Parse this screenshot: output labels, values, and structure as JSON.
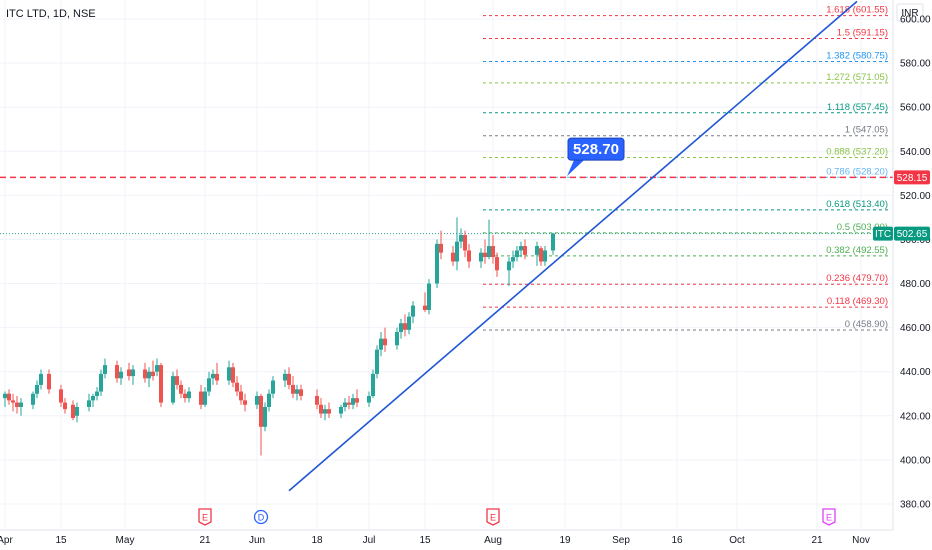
{
  "header": {
    "symbol": "ITC LTD, 1D, NSE",
    "currency": "INR"
  },
  "colors": {
    "up": "#26a69a",
    "down": "#ef5350",
    "trend": "#1f56d6",
    "callout": "#2962ff",
    "price_tag": "#089981",
    "hline": "#f23645",
    "dotted": "#26a69a"
  },
  "callout": {
    "label": "528.70"
  },
  "price_tags": {
    "hline": "528.15",
    "last": "502.65",
    "last_symbol": "ITC"
  },
  "events": [
    {
      "label": "E",
      "date": "2024-05-21",
      "color": "#f23645"
    },
    {
      "label": "D",
      "date": "2024-06-04",
      "color": "#2962ff"
    },
    {
      "label": "E",
      "date": "2024-08-01",
      "color": "#f23645"
    },
    {
      "label": "E",
      "date": "2024-10-24",
      "color": "#e040fb"
    }
  ],
  "chart_data": {
    "type": "candlestick",
    "title": "ITC LTD, 1D, NSE",
    "ylim": [
      370,
      605
    ],
    "y_ticks": [
      "380.00",
      "400.00",
      "420.00",
      "440.00",
      "460.00",
      "480.00",
      "500.00",
      "520.00",
      "540.00",
      "560.00",
      "580.00",
      "600.00"
    ],
    "x_ticks": [
      "Apr",
      "15",
      "May",
      "21",
      "Jun",
      "18",
      "Jul",
      "15",
      "Aug",
      "19",
      "Sep",
      "16",
      "Oct",
      "21",
      "Nov"
    ],
    "x_tick_dates": [
      "2024-04-01",
      "2024-04-15",
      "2024-05-01",
      "2024-05-21",
      "2024-06-03",
      "2024-06-18",
      "2024-07-01",
      "2024-07-15",
      "2024-08-01",
      "2024-08-19",
      "2024-09-02",
      "2024-09-16",
      "2024-10-01",
      "2024-10-21",
      "2024-11-01"
    ],
    "candles": [
      {
        "d": "2024-04-01",
        "o": 428,
        "h": 431,
        "l": 424,
        "c": 430
      },
      {
        "d": "2024-04-02",
        "o": 430,
        "h": 432,
        "l": 425,
        "c": 427
      },
      {
        "d": "2024-04-03",
        "o": 427,
        "h": 430,
        "l": 422,
        "c": 426
      },
      {
        "d": "2024-04-04",
        "o": 426,
        "h": 429,
        "l": 421,
        "c": 424
      },
      {
        "d": "2024-04-05",
        "o": 424,
        "h": 428,
        "l": 420,
        "c": 426
      },
      {
        "d": "2024-04-08",
        "o": 425,
        "h": 431,
        "l": 423,
        "c": 430
      },
      {
        "d": "2024-04-09",
        "o": 430,
        "h": 436,
        "l": 428,
        "c": 434
      },
      {
        "d": "2024-04-10",
        "o": 434,
        "h": 441,
        "l": 432,
        "c": 439
      },
      {
        "d": "2024-04-12",
        "o": 439,
        "h": 441,
        "l": 430,
        "c": 432
      },
      {
        "d": "2024-04-15",
        "o": 432,
        "h": 434,
        "l": 424,
        "c": 426
      },
      {
        "d": "2024-04-16",
        "o": 426,
        "h": 428,
        "l": 421,
        "c": 423
      },
      {
        "d": "2024-04-18",
        "o": 425,
        "h": 427,
        "l": 418,
        "c": 419
      },
      {
        "d": "2024-04-19",
        "o": 420,
        "h": 426,
        "l": 417,
        "c": 424
      },
      {
        "d": "2024-04-22",
        "o": 424,
        "h": 430,
        "l": 422,
        "c": 427
      },
      {
        "d": "2024-04-23",
        "o": 427,
        "h": 430,
        "l": 424,
        "c": 429
      },
      {
        "d": "2024-04-24",
        "o": 429,
        "h": 433,
        "l": 427,
        "c": 431
      },
      {
        "d": "2024-04-25",
        "o": 431,
        "h": 441,
        "l": 429,
        "c": 439
      },
      {
        "d": "2024-04-26",
        "o": 439,
        "h": 446,
        "l": 437,
        "c": 443
      },
      {
        "d": "2024-04-29",
        "o": 443,
        "h": 445,
        "l": 435,
        "c": 437
      },
      {
        "d": "2024-04-30",
        "o": 437,
        "h": 442,
        "l": 434,
        "c": 440
      },
      {
        "d": "2024-05-02",
        "o": 441,
        "h": 444,
        "l": 436,
        "c": 438
      },
      {
        "d": "2024-05-03",
        "o": 438,
        "h": 443,
        "l": 434,
        "c": 441
      },
      {
        "d": "2024-05-06",
        "o": 441,
        "h": 444,
        "l": 435,
        "c": 437
      },
      {
        "d": "2024-05-07",
        "o": 437,
        "h": 442,
        "l": 433,
        "c": 440
      },
      {
        "d": "2024-05-08",
        "o": 440,
        "h": 445,
        "l": 436,
        "c": 438
      },
      {
        "d": "2024-05-09",
        "o": 440,
        "h": 446,
        "l": 438,
        "c": 443
      },
      {
        "d": "2024-05-10",
        "o": 443,
        "h": 444,
        "l": 424,
        "c": 426
      },
      {
        "d": "2024-05-13",
        "o": 426,
        "h": 440,
        "l": 425,
        "c": 438
      },
      {
        "d": "2024-05-14",
        "o": 438,
        "h": 441,
        "l": 432,
        "c": 434
      },
      {
        "d": "2024-05-15",
        "o": 434,
        "h": 436,
        "l": 428,
        "c": 430
      },
      {
        "d": "2024-05-16",
        "o": 430,
        "h": 432,
        "l": 426,
        "c": 428
      },
      {
        "d": "2024-05-17",
        "o": 428,
        "h": 433,
        "l": 426,
        "c": 431
      },
      {
        "d": "2024-05-20",
        "o": 431,
        "h": 434,
        "l": 423,
        "c": 425
      },
      {
        "d": "2024-05-21",
        "o": 425,
        "h": 433,
        "l": 424,
        "c": 431
      },
      {
        "d": "2024-05-22",
        "o": 431,
        "h": 440,
        "l": 429,
        "c": 437
      },
      {
        "d": "2024-05-23",
        "o": 437,
        "h": 441,
        "l": 434,
        "c": 439
      },
      {
        "d": "2024-05-24",
        "o": 439,
        "h": 444,
        "l": 434,
        "c": 436
      },
      {
        "d": "2024-05-27",
        "o": 436,
        "h": 445,
        "l": 434,
        "c": 442
      },
      {
        "d": "2024-05-28",
        "o": 442,
        "h": 444,
        "l": 433,
        "c": 435
      },
      {
        "d": "2024-05-29",
        "o": 435,
        "h": 438,
        "l": 429,
        "c": 431
      },
      {
        "d": "2024-05-30",
        "o": 431,
        "h": 434,
        "l": 425,
        "c": 427
      },
      {
        "d": "2024-05-31",
        "o": 427,
        "h": 430,
        "l": 422,
        "c": 425
      },
      {
        "d": "2024-06-03",
        "o": 425,
        "h": 431,
        "l": 423,
        "c": 429
      },
      {
        "d": "2024-06-04",
        "o": 429,
        "h": 430,
        "l": 402,
        "c": 415
      },
      {
        "d": "2024-06-05",
        "o": 415,
        "h": 426,
        "l": 413,
        "c": 424
      },
      {
        "d": "2024-06-06",
        "o": 424,
        "h": 432,
        "l": 422,
        "c": 430
      },
      {
        "d": "2024-06-07",
        "o": 430,
        "h": 438,
        "l": 428,
        "c": 436
      },
      {
        "d": "2024-06-10",
        "o": 436,
        "h": 441,
        "l": 433,
        "c": 439
      },
      {
        "d": "2024-06-11",
        "o": 439,
        "h": 442,
        "l": 432,
        "c": 434
      },
      {
        "d": "2024-06-12",
        "o": 434,
        "h": 438,
        "l": 428,
        "c": 430
      },
      {
        "d": "2024-06-13",
        "o": 430,
        "h": 434,
        "l": 427,
        "c": 432
      },
      {
        "d": "2024-06-14",
        "o": 432,
        "h": 434,
        "l": 427,
        "c": 429
      },
      {
        "d": "2024-06-18",
        "o": 429,
        "h": 432,
        "l": 423,
        "c": 425
      },
      {
        "d": "2024-06-19",
        "o": 425,
        "h": 428,
        "l": 419,
        "c": 421
      },
      {
        "d": "2024-06-20",
        "o": 421,
        "h": 425,
        "l": 418,
        "c": 423
      },
      {
        "d": "2024-06-21",
        "o": 423,
        "h": 426,
        "l": 419,
        "c": 421
      },
      {
        "d": "2024-06-24",
        "o": 421,
        "h": 425,
        "l": 419,
        "c": 424
      },
      {
        "d": "2024-06-25",
        "o": 424,
        "h": 428,
        "l": 422,
        "c": 426
      },
      {
        "d": "2024-06-26",
        "o": 426,
        "h": 429,
        "l": 423,
        "c": 425
      },
      {
        "d": "2024-06-27",
        "o": 425,
        "h": 430,
        "l": 423,
        "c": 428
      },
      {
        "d": "2024-06-28",
        "o": 428,
        "h": 432,
        "l": 424,
        "c": 426
      },
      {
        "d": "2024-07-01",
        "o": 426,
        "h": 431,
        "l": 424,
        "c": 429
      },
      {
        "d": "2024-07-02",
        "o": 429,
        "h": 441,
        "l": 428,
        "c": 439
      },
      {
        "d": "2024-07-03",
        "o": 439,
        "h": 452,
        "l": 437,
        "c": 450
      },
      {
        "d": "2024-07-04",
        "o": 450,
        "h": 458,
        "l": 447,
        "c": 455
      },
      {
        "d": "2024-07-05",
        "o": 455,
        "h": 460,
        "l": 449,
        "c": 452
      },
      {
        "d": "2024-07-08",
        "o": 452,
        "h": 460,
        "l": 450,
        "c": 458
      },
      {
        "d": "2024-07-09",
        "o": 458,
        "h": 464,
        "l": 455,
        "c": 462
      },
      {
        "d": "2024-07-10",
        "o": 462,
        "h": 466,
        "l": 456,
        "c": 459
      },
      {
        "d": "2024-07-11",
        "o": 459,
        "h": 467,
        "l": 457,
        "c": 465
      },
      {
        "d": "2024-07-12",
        "o": 465,
        "h": 472,
        "l": 462,
        "c": 470
      },
      {
        "d": "2024-07-15",
        "o": 470,
        "h": 476,
        "l": 467,
        "c": 468
      },
      {
        "d": "2024-07-16",
        "o": 468,
        "h": 482,
        "l": 466,
        "c": 480
      },
      {
        "d": "2024-07-18",
        "o": 480,
        "h": 500,
        "l": 478,
        "c": 498
      },
      {
        "d": "2024-07-19",
        "o": 498,
        "h": 504,
        "l": 491,
        "c": 494
      },
      {
        "d": "2024-07-22",
        "o": 494,
        "h": 497,
        "l": 488,
        "c": 490
      },
      {
        "d": "2024-07-23",
        "o": 490,
        "h": 510,
        "l": 486,
        "c": 499
      },
      {
        "d": "2024-07-24",
        "o": 499,
        "h": 505,
        "l": 496,
        "c": 502
      },
      {
        "d": "2024-07-25",
        "o": 502,
        "h": 504,
        "l": 492,
        "c": 495
      },
      {
        "d": "2024-07-26",
        "o": 495,
        "h": 498,
        "l": 487,
        "c": 490
      },
      {
        "d": "2024-07-29",
        "o": 490,
        "h": 496,
        "l": 487,
        "c": 494
      },
      {
        "d": "2024-07-30",
        "o": 494,
        "h": 500,
        "l": 489,
        "c": 492
      },
      {
        "d": "2024-07-31",
        "o": 492,
        "h": 509,
        "l": 491,
        "c": 497
      },
      {
        "d": "2024-08-01",
        "o": 497,
        "h": 502,
        "l": 489,
        "c": 492
      },
      {
        "d": "2024-08-02",
        "o": 492,
        "h": 494,
        "l": 483,
        "c": 486
      },
      {
        "d": "2024-08-05",
        "o": 486,
        "h": 492,
        "l": 479,
        "c": 490
      },
      {
        "d": "2024-08-06",
        "o": 490,
        "h": 495,
        "l": 487,
        "c": 492
      },
      {
        "d": "2024-08-07",
        "o": 492,
        "h": 497,
        "l": 490,
        "c": 495
      },
      {
        "d": "2024-08-08",
        "o": 495,
        "h": 499,
        "l": 492,
        "c": 497
      },
      {
        "d": "2024-08-09",
        "o": 497,
        "h": 500,
        "l": 491,
        "c": 493
      },
      {
        "d": "2024-08-12",
        "o": 493,
        "h": 499,
        "l": 488,
        "c": 497
      },
      {
        "d": "2024-08-13",
        "o": 496,
        "h": 497,
        "l": 488,
        "c": 490
      },
      {
        "d": "2024-08-14",
        "o": 490,
        "h": 497,
        "l": 488,
        "c": 495
      },
      {
        "d": "2024-08-16",
        "o": 495,
        "h": 503,
        "l": 493,
        "c": 502.65
      }
    ],
    "fib_levels": [
      {
        "ratio": "0",
        "price": 458.9,
        "label": "0 (458.90)",
        "color": "#787b86"
      },
      {
        "ratio": "0.118",
        "price": 469.3,
        "label": "0.118 (469.30)",
        "color": "#f23645"
      },
      {
        "ratio": "0.236",
        "price": 479.7,
        "label": "0.236 (479.70)",
        "color": "#f23645"
      },
      {
        "ratio": "0.382",
        "price": 492.55,
        "label": "0.382 (492.55)",
        "color": "#4caf50"
      },
      {
        "ratio": "0.5",
        "price": 503.0,
        "label": "0.5 (503.00)",
        "color": "#4caf50"
      },
      {
        "ratio": "0.618",
        "price": 513.4,
        "label": "0.618 (513.40)",
        "color": "#089981"
      },
      {
        "ratio": "0.786",
        "price": 528.2,
        "label": "0.786 (528.20)",
        "color": "#64b5f6"
      },
      {
        "ratio": "0.888",
        "price": 537.2,
        "label": "0.888 (537.20)",
        "color": "#8bc34a"
      },
      {
        "ratio": "1",
        "price": 547.05,
        "label": "1 (547.05)",
        "color": "#787b86"
      },
      {
        "ratio": "1.118",
        "price": 557.45,
        "label": "1.118 (557.45)",
        "color": "#089981"
      },
      {
        "ratio": "1.272",
        "price": 571.05,
        "label": "1.272 (571.05)",
        "color": "#8bc34a"
      },
      {
        "ratio": "1.382",
        "price": 580.75,
        "label": "1.382 (580.75)",
        "color": "#2196f3"
      },
      {
        "ratio": "1.5",
        "price": 591.15,
        "label": "1.5 (591.15)",
        "color": "#f23645"
      },
      {
        "ratio": "1.618",
        "price": 601.55,
        "label": "1.618 (601.55)",
        "color": "#f23645"
      }
    ],
    "hline": 528.15,
    "last_price": 502.65,
    "trendline": [
      {
        "d": "2024-06-11",
        "p": 386
      },
      {
        "d": "2024-10-31",
        "p": 608
      }
    ],
    "callout_price": 528.7
  }
}
